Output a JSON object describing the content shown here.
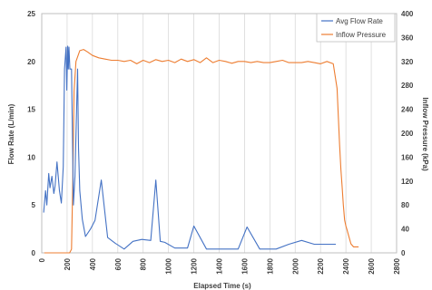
{
  "chart_data": {
    "type": "line",
    "title": "",
    "xlabel": "Elapsed Time (s)",
    "ylabel": "Flow Rate (L/min)",
    "y2label": "Inflow Pressure (kPa)",
    "xlim": [
      0,
      2800
    ],
    "ylim": [
      0,
      25
    ],
    "y2lim": [
      0,
      400
    ],
    "xticks": [
      0,
      200,
      400,
      600,
      800,
      1000,
      1200,
      1400,
      1600,
      1800,
      2000,
      2200,
      2400,
      2600,
      2800
    ],
    "yticks": [
      0,
      5,
      10,
      15,
      20,
      25
    ],
    "y2ticks": [
      0,
      40,
      80,
      120,
      160,
      200,
      240,
      280,
      320,
      360,
      400
    ],
    "grid": "vertical",
    "legend": "top-right",
    "series": [
      {
        "name": "Avg Flow Rate",
        "axis": "left",
        "color": "#4472C4",
        "x": [
          15,
          30,
          40,
          55,
          65,
          80,
          95,
          105,
          120,
          140,
          155,
          170,
          180,
          192,
          198,
          205,
          210,
          215,
          222,
          235,
          250,
          262,
          275,
          283,
          290,
          300,
          320,
          345,
          385,
          420,
          470,
          520,
          580,
          650,
          720,
          790,
          860,
          900,
          935,
          970,
          1050,
          1150,
          1200,
          1300,
          1400,
          1550,
          1620,
          1720,
          1850,
          1950,
          2050,
          2150,
          2240,
          2320
        ],
        "y": [
          4.2,
          6.5,
          5.0,
          8.3,
          6.8,
          8.0,
          6.2,
          7.0,
          9.5,
          6.5,
          5.2,
          9.0,
          19.2,
          21.5,
          17.0,
          21.6,
          19.2,
          21.5,
          19.2,
          19.2,
          5.0,
          8.0,
          15.0,
          19.2,
          11.0,
          6.5,
          3.5,
          1.7,
          2.5,
          3.4,
          7.6,
          1.6,
          1.0,
          0.4,
          1.2,
          1.4,
          1.3,
          7.6,
          1.2,
          1.1,
          0.5,
          0.5,
          2.8,
          0.4,
          0.4,
          0.4,
          2.7,
          0.4,
          0.4,
          0.9,
          1.3,
          0.9,
          0.9,
          0.9
        ]
      },
      {
        "name": "Inflow Pressure",
        "axis": "right",
        "color": "#ED7D31",
        "x": [
          20,
          150,
          220,
          235,
          245,
          255,
          270,
          300,
          330,
          360,
          400,
          450,
          500,
          550,
          600,
          650,
          700,
          750,
          800,
          850,
          900,
          950,
          1000,
          1050,
          1100,
          1150,
          1200,
          1250,
          1300,
          1350,
          1400,
          1450,
          1500,
          1550,
          1600,
          1650,
          1700,
          1750,
          1800,
          1850,
          1900,
          1950,
          2000,
          2050,
          2100,
          2150,
          2200,
          2250,
          2300,
          2330,
          2350,
          2360,
          2370,
          2380,
          2390,
          2400,
          2410,
          2420,
          2440,
          2460,
          2480,
          2500
        ],
        "y": [
          0,
          0,
          0,
          6,
          120,
          270,
          320,
          338,
          340,
          336,
          330,
          326,
          324,
          322,
          322,
          320,
          322,
          316,
          322,
          318,
          323,
          320,
          322,
          318,
          324,
          320,
          323,
          318,
          326,
          318,
          322,
          320,
          317,
          320,
          320,
          318,
          320,
          318,
          318,
          320,
          322,
          318,
          318,
          318,
          320,
          318,
          316,
          320,
          316,
          275,
          180,
          140,
          110,
          80,
          55,
          45,
          38,
          30,
          15,
          10,
          10,
          10
        ]
      }
    ]
  }
}
